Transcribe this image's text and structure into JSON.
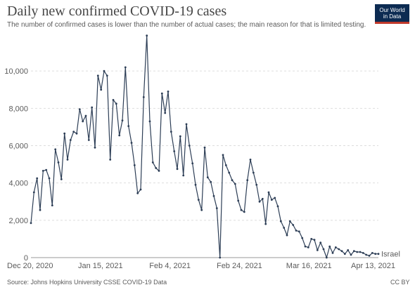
{
  "header": {
    "title": "Daily new confirmed COVID-19 cases",
    "subtitle": "The number of confirmed cases is lower than the number of actual cases; the main reason for that is limited testing."
  },
  "logo": {
    "line1": "Our World",
    "line2": "in Data"
  },
  "footer": {
    "source": "Source: Johns Hopkins University CSSE COVID-19 Data",
    "license": "CC BY"
  },
  "colors": {
    "line": "#2d3e56",
    "grid": "#dddddd",
    "logo_bg": "#0c2b52",
    "logo_accent": "#c0392b"
  },
  "chart_data": {
    "type": "line",
    "x_ticks": [
      "Dec 20, 2020",
      "Jan 15, 2021",
      "Feb 4, 2021",
      "Feb 24, 2021",
      "Mar 16, 2021",
      "Apr 13, 2021"
    ],
    "y_ticks": [
      0,
      2000,
      4000,
      6000,
      8000,
      10000
    ],
    "ylim": [
      0,
      12000
    ],
    "x_range": [
      "2020-12-20",
      "2021-04-13"
    ],
    "grid": true,
    "series": [
      {
        "name": "Israel",
        "color": "#2d3e56",
        "start_date": "2020-12-20",
        "values": [
          1850,
          3500,
          4250,
          2550,
          4650,
          4700,
          4250,
          2800,
          5800,
          5100,
          4200,
          6650,
          5250,
          6300,
          6750,
          6650,
          7950,
          7300,
          7600,
          6300,
          8050,
          5900,
          9750,
          9000,
          10000,
          9750,
          5250,
          8450,
          8250,
          6550,
          7350,
          10200,
          7050,
          6150,
          4950,
          3450,
          3650,
          8600,
          11900,
          7300,
          5100,
          4800,
          4650,
          8800,
          7750,
          8900,
          6750,
          5700,
          4750,
          6500,
          4400,
          7150,
          6000,
          5050,
          3900,
          3100,
          2550,
          5900,
          4300,
          4050,
          3300,
          2650,
          0,
          5500,
          4950,
          4550,
          4150,
          3950,
          3050,
          2550,
          2450,
          4150,
          5250,
          4550,
          3900,
          3000,
          3150,
          1800,
          3500,
          3100,
          3200,
          2750,
          1950,
          1600,
          1200,
          1950,
          1750,
          1450,
          1400,
          1050,
          600,
          550,
          1000,
          950,
          400,
          800,
          450,
          0,
          600,
          250,
          550,
          450,
          350,
          200,
          400,
          150,
          350,
          300,
          300,
          250,
          150,
          100,
          250,
          200,
          200
        ]
      }
    ]
  }
}
